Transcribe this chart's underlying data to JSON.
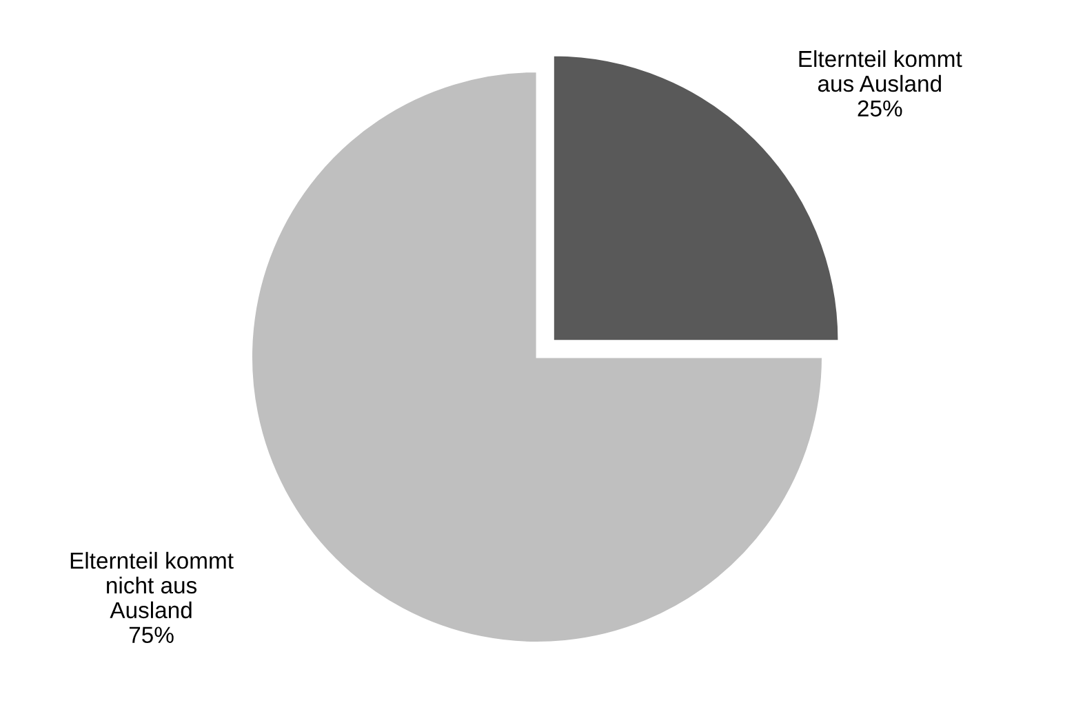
{
  "chart_data": {
    "type": "pie",
    "categories": [
      "Elternteil kommt\naus Ausland",
      "Elternteil kommt\nnicht aus\nAusland"
    ],
    "values": [
      25,
      75
    ],
    "colors": [
      "#595959",
      "#bfbfbf"
    ],
    "value_labels": [
      "25%",
      "75%"
    ]
  }
}
